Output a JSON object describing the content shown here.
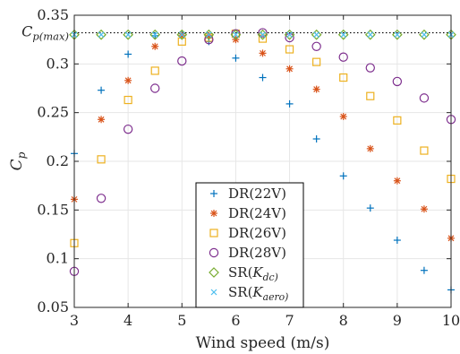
{
  "colors": {
    "blue": "#0072BD",
    "orange": "#D95319",
    "yellow": "#EDB120",
    "purple": "#7E2F8E",
    "green": "#77AC30",
    "cyan": "#4DBEEE",
    "grid": "#e6e6e6",
    "axis": "#262626"
  },
  "chart_data": {
    "type": "scatter",
    "xlabel": "Wind speed (m/s)",
    "ylabel": "C_p",
    "xlim": [
      3,
      10
    ],
    "ylim": [
      0.05,
      0.35
    ],
    "x_ticks": [
      3,
      4,
      5,
      6,
      7,
      8,
      9,
      10
    ],
    "x_tick_labels": [
      "3",
      "4",
      "5",
      "6",
      "7",
      "8",
      "9",
      "10"
    ],
    "y_ticks": [
      0.05,
      0.1,
      0.15,
      0.2,
      0.25,
      0.3,
      0.35
    ],
    "y_tick_labels": [
      "0.05",
      "0.1",
      "0.15",
      "0.2",
      "0.25",
      "0.3",
      "0.35"
    ],
    "grid": true,
    "legend_position": "bottom-center",
    "reference_line": {
      "y": 0.332,
      "label": "C_p(max)",
      "style": "dotted"
    },
    "series": [
      {
        "name": "DR(22V)",
        "marker": "plus",
        "color": "blue",
        "x": [
          3,
          3.5,
          4,
          4.5,
          5,
          5.5,
          6,
          6.5,
          7,
          7.5,
          8,
          8.5,
          9,
          9.5,
          10
        ],
        "y": [
          0.208,
          0.273,
          0.31,
          0.329,
          0.331,
          0.323,
          0.306,
          0.286,
          0.259,
          0.223,
          0.185,
          0.152,
          0.119,
          0.088,
          0.068
        ]
      },
      {
        "name": "DR(24V)",
        "marker": "asterisk",
        "color": "orange",
        "x": [
          3,
          3.5,
          4,
          4.5,
          5,
          5.5,
          6,
          6.5,
          7,
          7.5,
          8,
          8.5,
          9,
          9.5,
          10
        ],
        "y": [
          0.161,
          0.243,
          0.283,
          0.318,
          0.329,
          0.329,
          0.325,
          0.311,
          0.295,
          0.274,
          0.246,
          0.213,
          0.18,
          0.151,
          0.121
        ]
      },
      {
        "name": "DR(26V)",
        "marker": "square",
        "color": "yellow",
        "x": [
          3,
          3.5,
          4,
          4.5,
          5,
          5.5,
          6,
          6.5,
          7,
          7.5,
          8,
          8.5,
          9,
          9.5,
          10
        ],
        "y": [
          0.116,
          0.202,
          0.263,
          0.293,
          0.323,
          0.327,
          0.331,
          0.326,
          0.315,
          0.302,
          0.286,
          0.267,
          0.242,
          0.211,
          0.182
        ]
      },
      {
        "name": "DR(28V)",
        "marker": "circle",
        "color": "purple",
        "x": [
          3,
          3.5,
          4,
          4.5,
          5,
          5.5,
          6,
          6.5,
          7,
          7.5,
          8,
          8.5,
          9,
          9.5,
          10
        ],
        "y": [
          0.087,
          0.162,
          0.233,
          0.275,
          0.303,
          0.325,
          0.331,
          0.332,
          0.327,
          0.318,
          0.307,
          0.296,
          0.282,
          0.265,
          0.243
        ]
      },
      {
        "name": "SR(K_dc)",
        "marker": "diamond",
        "color": "green",
        "x": [
          3,
          3.5,
          4,
          4.5,
          5,
          5.5,
          6,
          6.5,
          7,
          7.5,
          8,
          8.5,
          9,
          9.5,
          10
        ],
        "y": [
          0.33,
          0.33,
          0.33,
          0.33,
          0.33,
          0.33,
          0.33,
          0.33,
          0.33,
          0.33,
          0.33,
          0.33,
          0.33,
          0.33,
          0.33
        ]
      },
      {
        "name": "SR(K_aero)",
        "marker": "x",
        "color": "cyan",
        "x": [
          3,
          3.5,
          4,
          4.5,
          5,
          5.5,
          6,
          6.5,
          7,
          7.5,
          8,
          8.5,
          9,
          9.5,
          10
        ],
        "y": [
          0.33,
          0.33,
          0.33,
          0.33,
          0.33,
          0.33,
          0.33,
          0.33,
          0.33,
          0.33,
          0.33,
          0.33,
          0.33,
          0.33,
          0.33
        ]
      }
    ]
  }
}
